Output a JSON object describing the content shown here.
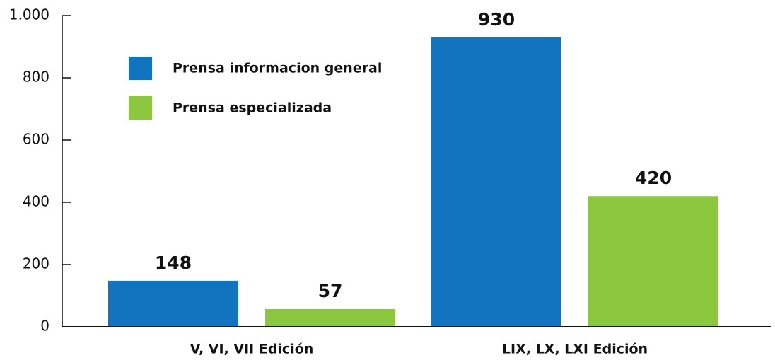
{
  "chart_data": {
    "type": "bar",
    "categories": [
      "V, VI, VII Edición",
      "LIX, LX, LXI Edición"
    ],
    "series": [
      {
        "name": "Prensa informacion general",
        "color": "#1274bf",
        "values": [
          148,
          930
        ]
      },
      {
        "name": "Prensa especializada",
        "color": "#8dc63f",
        "values": [
          57,
          420
        ]
      }
    ],
    "ylim": [
      0,
      1000
    ],
    "yticks": [
      0,
      200,
      400,
      600,
      800,
      {
        "value": 1000,
        "label": "1.000"
      }
    ],
    "grid": false,
    "legend": "upper left"
  }
}
